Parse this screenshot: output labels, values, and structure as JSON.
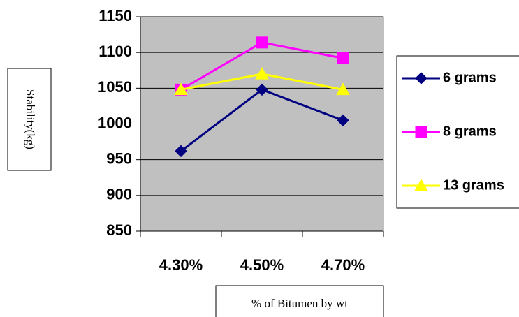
{
  "chart_data": {
    "type": "line",
    "xlabel": "% of Bitumen by wt",
    "ylabel": "Stability(kg)",
    "categories": [
      "4.30%",
      "4.50%",
      "4.70%"
    ],
    "ylim": [
      850,
      1150
    ],
    "yticks": [
      850,
      900,
      950,
      1000,
      1050,
      1100,
      1150
    ],
    "grid": true,
    "legend_position": "right",
    "background_color": "#c0c0c0",
    "series": [
      {
        "name": "6 grams",
        "values": [
          962,
          1048,
          1005
        ],
        "color": "#000080",
        "marker": "diamond"
      },
      {
        "name": "8 grams",
        "values": [
          1048,
          1114,
          1092
        ],
        "color": "#ff00ff",
        "marker": "square"
      },
      {
        "name": "13 grams",
        "values": [
          1048,
          1070,
          1048
        ],
        "color": "#ffff00",
        "marker": "triangle"
      }
    ]
  }
}
